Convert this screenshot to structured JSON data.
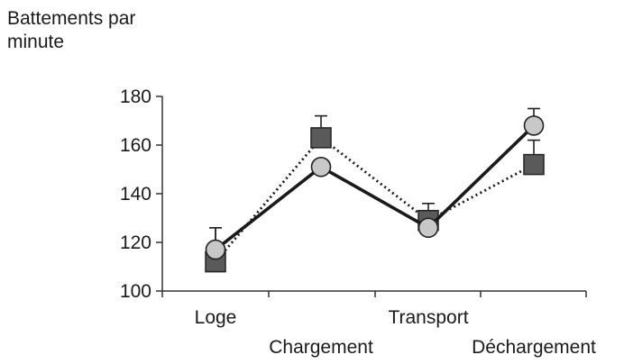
{
  "chart_data": {
    "type": "line",
    "ylabel_lines": [
      "Battements par",
      "minute"
    ],
    "categories": [
      "Loge",
      "Chargement",
      "Transport",
      "Déchargement"
    ],
    "ylim": [
      100,
      180
    ],
    "yticks": [
      100,
      120,
      140,
      160,
      180
    ],
    "grid": false,
    "legend": "none",
    "series": [
      {
        "values": [
          112,
          163,
          129,
          152
        ],
        "errors": [
          14,
          9,
          7,
          10
        ],
        "marker": "square",
        "line": "dotted",
        "color": "#5a5a5a"
      },
      {
        "values": [
          117,
          151,
          126,
          168
        ],
        "errors": [
          9,
          0,
          0,
          7
        ],
        "marker": "circle",
        "line": "solid",
        "color": "#c8c8c8"
      }
    ]
  }
}
